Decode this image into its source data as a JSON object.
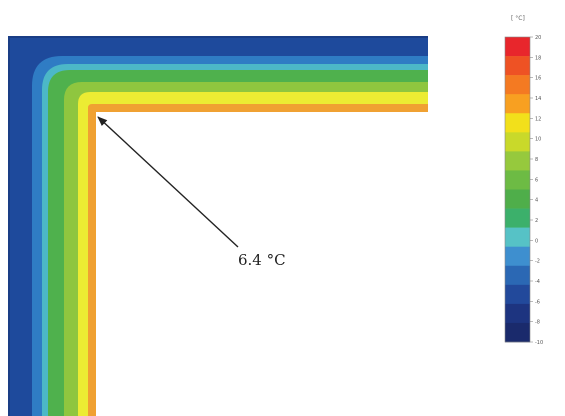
{
  "annotation": {
    "label": "6.4 °C"
  },
  "legend": {
    "unit": "[ °C]",
    "ticks": [
      "20",
      "18",
      "16",
      "14",
      "12",
      "10",
      "8",
      "6",
      "4",
      "2",
      "0",
      "-2",
      "-4",
      "-6",
      "-8",
      "-10"
    ],
    "colors": [
      "#e8262c",
      "#ee5224",
      "#f47a22",
      "#f8a021",
      "#f2e01b",
      "#c9d92a",
      "#96c93d",
      "#6dbb44",
      "#4fae4a",
      "#3cb06b",
      "#56c2c6",
      "#3e8fcf",
      "#2b68b4",
      "#22499b",
      "#1d3480",
      "#1a2a6c"
    ]
  },
  "isotherm_colors": {
    "outer": "#1e4a9c",
    "band2": "#2f7cc4",
    "band3": "#4cb8c7",
    "band4": "#4fb14d",
    "band5": "#8fc63f",
    "band6": "#ecec33",
    "inner": "#f0a132"
  }
}
